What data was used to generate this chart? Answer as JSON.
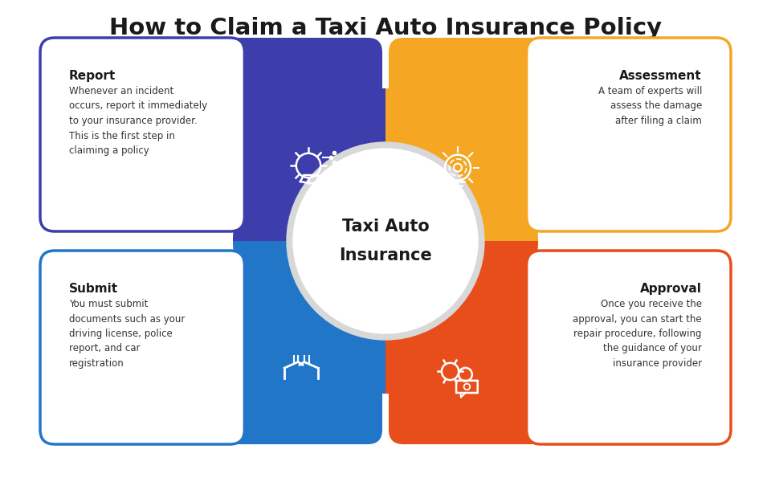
{
  "title": "How to Claim a Taxi Auto Insurance Policy",
  "title_fontsize": 21,
  "center_text_line1": "Taxi Auto",
  "center_text_line2": "Insurance",
  "background_color": "#ffffff",
  "center_circle_color": "#d8d8d8",
  "center_circle_inner": "#ffffff",
  "boxes": [
    {
      "label": "Report",
      "color": "#3d3dab",
      "align": "left",
      "desc": "Whenever an incident\noccurs, report it immediately\nto your insurance provider.\nThis is the first step in\nclaiming a policy",
      "icon_side": "right"
    },
    {
      "label": "Assessment",
      "color": "#f5a623",
      "align": "right",
      "desc": "A team of experts will\nassess the damage\nafter filing a claim",
      "icon_side": "left"
    },
    {
      "label": "Submit",
      "color": "#2176c8",
      "align": "left",
      "desc": "You must submit\ndocuments such as your\ndriving license, police\nreport, and car\nregistration",
      "icon_side": "right"
    },
    {
      "label": "Approval",
      "color": "#e84e1b",
      "align": "right",
      "desc": "Once you receive the\napproval, you can start the\nrepair procedure, following\nthe guidance of your\ninsurance provider",
      "icon_side": "left"
    }
  ]
}
